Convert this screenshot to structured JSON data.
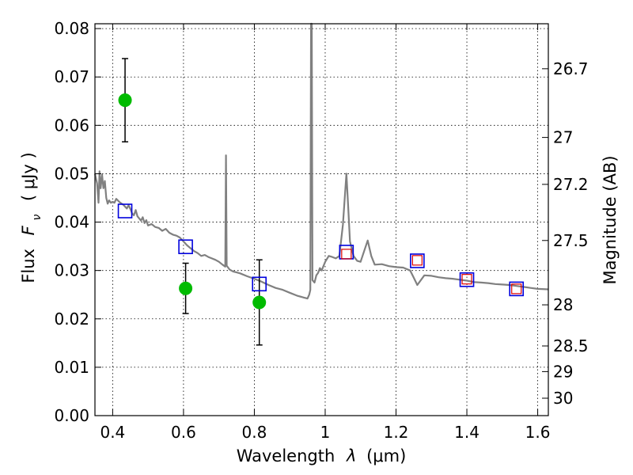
{
  "chart_data": {
    "type": "scatter",
    "xlabel_text": "Wavelength",
    "xlabel_symbol": "λ",
    "xlabel_unit": "(μm)",
    "ylabel_text": "Flux",
    "ylabel_symbol": "F",
    "ylabel_subscript": "ν",
    "ylabel_unit": "( μJy )",
    "y2label": "Magnitude (AB)",
    "xlim": [
      0.35,
      1.63
    ],
    "ylim": [
      0.0,
      0.081
    ],
    "grid": true,
    "x_ticks": [
      {
        "value": 0.4,
        "label": "0.4"
      },
      {
        "value": 0.6,
        "label": "0.6"
      },
      {
        "value": 0.8,
        "label": "0.8"
      },
      {
        "value": 1.0,
        "label": "1"
      },
      {
        "value": 1.2,
        "label": "1.2"
      },
      {
        "value": 1.4,
        "label": "1.4"
      },
      {
        "value": 1.6,
        "label": "1.6"
      }
    ],
    "y_ticks": [
      {
        "value": 0.0,
        "label": "0.00"
      },
      {
        "value": 0.01,
        "label": "0.01"
      },
      {
        "value": 0.02,
        "label": "0.02"
      },
      {
        "value": 0.03,
        "label": "0.03"
      },
      {
        "value": 0.04,
        "label": "0.04"
      },
      {
        "value": 0.05,
        "label": "0.05"
      },
      {
        "value": 0.06,
        "label": "0.06"
      },
      {
        "value": 0.07,
        "label": "0.07"
      },
      {
        "value": 0.08,
        "label": "0.08"
      }
    ],
    "y2_ticks": [
      {
        "flux": 0.0717,
        "label": "26.7"
      },
      {
        "flux": 0.0575,
        "label": "27"
      },
      {
        "flux": 0.0478,
        "label": "27.2"
      },
      {
        "flux": 0.0362,
        "label": "27.5"
      },
      {
        "flux": 0.0229,
        "label": "28"
      },
      {
        "flux": 0.0144,
        "label": "28.5"
      },
      {
        "flux": 0.0091,
        "label": "29"
      },
      {
        "flux": 0.0036,
        "label": "30"
      }
    ],
    "model_spectrum": {
      "color": "#808080",
      "points": [
        [
          0.35,
          0.05
        ],
        [
          0.356,
          0.048
        ],
        [
          0.36,
          0.044
        ],
        [
          0.363,
          0.0505
        ],
        [
          0.366,
          0.047
        ],
        [
          0.37,
          0.0498
        ],
        [
          0.374,
          0.047
        ],
        [
          0.378,
          0.0485
        ],
        [
          0.382,
          0.045
        ],
        [
          0.386,
          0.0438
        ],
        [
          0.39,
          0.0445
        ],
        [
          0.395,
          0.044
        ],
        [
          0.4,
          0.0442
        ],
        [
          0.405,
          0.044
        ],
        [
          0.41,
          0.0448
        ],
        [
          0.42,
          0.0441
        ],
        [
          0.43,
          0.0436
        ],
        [
          0.44,
          0.0428
        ],
        [
          0.445,
          0.0435
        ],
        [
          0.45,
          0.0427
        ],
        [
          0.455,
          0.0418
        ],
        [
          0.46,
          0.0414
        ],
        [
          0.465,
          0.0425
        ],
        [
          0.47,
          0.0412
        ],
        [
          0.48,
          0.0403
        ],
        [
          0.485,
          0.041
        ],
        [
          0.49,
          0.0398
        ],
        [
          0.495,
          0.0404
        ],
        [
          0.5,
          0.0393
        ],
        [
          0.51,
          0.0396
        ],
        [
          0.52,
          0.039
        ],
        [
          0.53,
          0.0388
        ],
        [
          0.54,
          0.0382
        ],
        [
          0.55,
          0.0386
        ],
        [
          0.56,
          0.0378
        ],
        [
          0.57,
          0.0374
        ],
        [
          0.58,
          0.0372
        ],
        [
          0.59,
          0.0368
        ],
        [
          0.6,
          0.036
        ],
        [
          0.61,
          0.0352
        ],
        [
          0.62,
          0.0346
        ],
        [
          0.63,
          0.034
        ],
        [
          0.64,
          0.0336
        ],
        [
          0.65,
          0.033
        ],
        [
          0.66,
          0.0332
        ],
        [
          0.67,
          0.0328
        ],
        [
          0.68,
          0.0325
        ],
        [
          0.69,
          0.0322
        ],
        [
          0.7,
          0.0318
        ],
        [
          0.71,
          0.0312
        ],
        [
          0.718,
          0.0308
        ],
        [
          0.72,
          0.0538
        ],
        [
          0.722,
          0.031
        ],
        [
          0.73,
          0.0302
        ],
        [
          0.74,
          0.0298
        ],
        [
          0.75,
          0.0296
        ],
        [
          0.76,
          0.0294
        ],
        [
          0.78,
          0.0288
        ],
        [
          0.8,
          0.0283
        ],
        [
          0.82,
          0.0277
        ],
        [
          0.84,
          0.027
        ],
        [
          0.86,
          0.0264
        ],
        [
          0.88,
          0.026
        ],
        [
          0.9,
          0.0254
        ],
        [
          0.92,
          0.0248
        ],
        [
          0.94,
          0.0244
        ],
        [
          0.95,
          0.0242
        ],
        [
          0.955,
          0.025
        ],
        [
          0.958,
          0.026
        ],
        [
          0.96,
          0.081
        ],
        [
          0.962,
          0.081
        ],
        [
          0.964,
          0.028
        ],
        [
          0.97,
          0.0275
        ],
        [
          0.975,
          0.029
        ],
        [
          0.98,
          0.0295
        ],
        [
          0.985,
          0.0305
        ],
        [
          0.99,
          0.03
        ],
        [
          1.0,
          0.0318
        ],
        [
          1.01,
          0.033
        ],
        [
          1.02,
          0.0328
        ],
        [
          1.03,
          0.0325
        ],
        [
          1.04,
          0.033
        ],
        [
          1.05,
          0.0395
        ],
        [
          1.06,
          0.05
        ],
        [
          1.065,
          0.043
        ],
        [
          1.07,
          0.036
        ],
        [
          1.08,
          0.033
        ],
        [
          1.09,
          0.032
        ],
        [
          1.1,
          0.0318
        ],
        [
          1.11,
          0.034
        ],
        [
          1.12,
          0.0362
        ],
        [
          1.13,
          0.033
        ],
        [
          1.14,
          0.0312
        ],
        [
          1.16,
          0.0313
        ],
        [
          1.18,
          0.0309
        ],
        [
          1.2,
          0.0307
        ],
        [
          1.22,
          0.0306
        ],
        [
          1.24,
          0.03
        ],
        [
          1.25,
          0.0285
        ],
        [
          1.26,
          0.027
        ],
        [
          1.28,
          0.029
        ],
        [
          1.3,
          0.0289
        ],
        [
          1.32,
          0.0286
        ],
        [
          1.34,
          0.0284
        ],
        [
          1.36,
          0.0283
        ],
        [
          1.38,
          0.0281
        ],
        [
          1.4,
          0.0279
        ],
        [
          1.42,
          0.0276
        ],
        [
          1.44,
          0.0275
        ],
        [
          1.46,
          0.0274
        ],
        [
          1.48,
          0.0272
        ],
        [
          1.5,
          0.0271
        ],
        [
          1.52,
          0.027
        ],
        [
          1.54,
          0.0268
        ],
        [
          1.56,
          0.0266
        ],
        [
          1.58,
          0.0264
        ],
        [
          1.6,
          0.0262
        ],
        [
          1.63,
          0.0261
        ]
      ]
    },
    "series": [
      {
        "kind": "observed",
        "color": "#00bb00",
        "points": [
          {
            "x": 0.435,
            "y": 0.0652,
            "yerr": 0.0086
          },
          {
            "x": 0.606,
            "y": 0.0263,
            "yerr": 0.0052
          },
          {
            "x": 0.814,
            "y": 0.0234,
            "yerr": 0.0088
          }
        ]
      },
      {
        "kind": "model-photometry-blue",
        "color": "#0000dd",
        "points": [
          {
            "x": 0.435,
            "y": 0.0423
          },
          {
            "x": 0.606,
            "y": 0.0349
          },
          {
            "x": 0.814,
            "y": 0.0272
          },
          {
            "x": 1.06,
            "y": 0.0338
          },
          {
            "x": 1.26,
            "y": 0.032
          },
          {
            "x": 1.4,
            "y": 0.0281
          },
          {
            "x": 1.54,
            "y": 0.0262
          }
        ]
      },
      {
        "kind": "model-photometry-red",
        "color": "#dd0000",
        "points": [
          {
            "x": 1.06,
            "y": 0.0334
          },
          {
            "x": 1.26,
            "y": 0.0321
          },
          {
            "x": 1.4,
            "y": 0.0282
          },
          {
            "x": 1.54,
            "y": 0.0262
          }
        ]
      }
    ]
  }
}
